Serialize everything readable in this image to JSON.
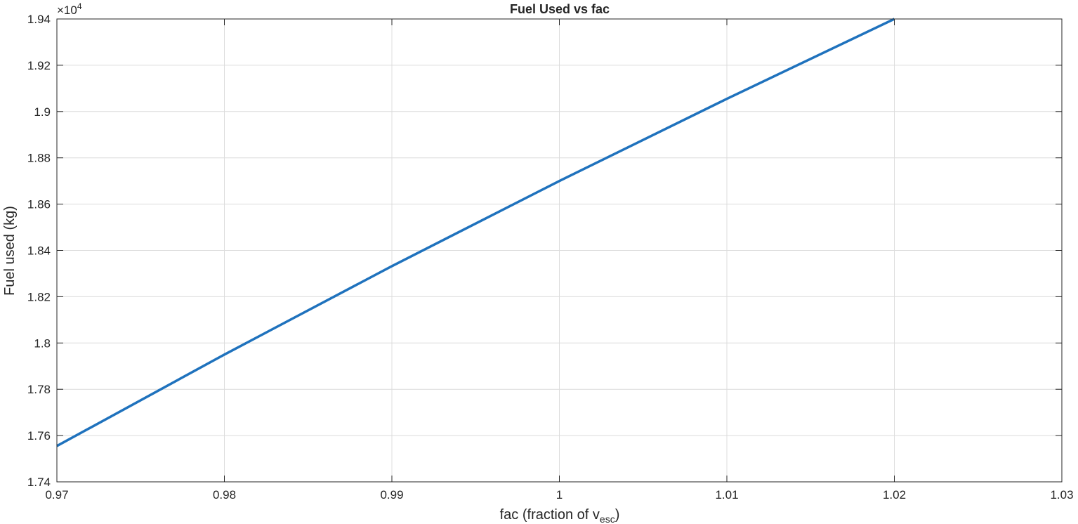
{
  "chart_data": {
    "type": "line",
    "title": "Fuel Used vs fac",
    "xlabel": {
      "main": "fac  (fraction  of  v",
      "sub": "esc",
      "close": ")"
    },
    "ylabel": "Fuel used (kg)",
    "exponent": {
      "base": "×10",
      "power": "4"
    },
    "xlim": [
      0.97,
      1.03
    ],
    "ylim": [
      1.74,
      1.94
    ],
    "xticks": [
      0.97,
      0.98,
      0.99,
      1.0,
      1.01,
      1.02,
      1.03
    ],
    "xtick_labels": [
      "0.97",
      "0.98",
      "0.99",
      "1",
      "1.01",
      "1.02",
      "1.03"
    ],
    "yticks": [
      1.74,
      1.76,
      1.78,
      1.8,
      1.82,
      1.84,
      1.86,
      1.88,
      1.9,
      1.92,
      1.94
    ],
    "ytick_labels": [
      "1.74",
      "1.76",
      "1.78",
      "1.8",
      "1.82",
      "1.84",
      "1.86",
      "1.88",
      "1.9",
      "1.92",
      "1.94"
    ],
    "grid": true,
    "series": [
      {
        "name": "Fuel used",
        "color": "#1f72bd",
        "x": [
          0.97,
          0.98,
          0.99,
          1.0,
          1.01,
          1.02
        ],
        "y": [
          1.7555,
          1.795,
          1.8332,
          1.87,
          1.9055,
          1.94
        ]
      }
    ]
  }
}
